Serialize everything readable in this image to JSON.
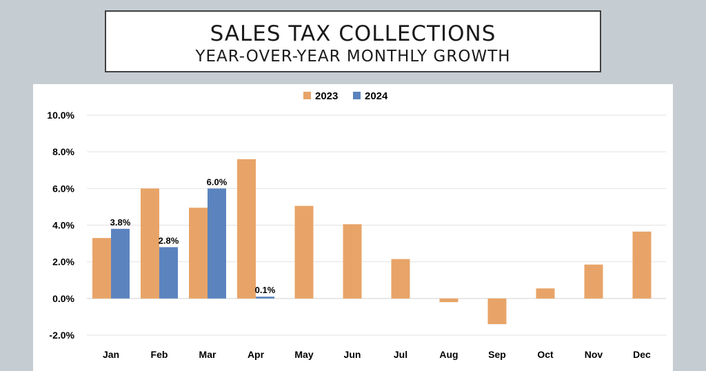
{
  "title": {
    "line1": "SALES TAX COLLECTIONS",
    "line2": "YEAR-OVER-YEAR MONTHLY GROWTH"
  },
  "chart_data": {
    "type": "bar",
    "categories": [
      "Jan",
      "Feb",
      "Mar",
      "Apr",
      "May",
      "Jun",
      "Jul",
      "Aug",
      "Sep",
      "Oct",
      "Nov",
      "Dec"
    ],
    "series": [
      {
        "name": "2023",
        "color": "#e8a468",
        "values": [
          3.3,
          6.0,
          4.95,
          7.6,
          5.05,
          4.05,
          2.15,
          -0.2,
          -1.4,
          0.55,
          1.85,
          3.65
        ]
      },
      {
        "name": "2024",
        "color": "#5b84bf",
        "values": [
          3.8,
          2.8,
          6.0,
          0.1,
          null,
          null,
          null,
          null,
          null,
          null,
          null,
          null
        ]
      }
    ],
    "data_labels": {
      "series": "2024",
      "values": [
        "3.8%",
        "2.8%",
        "6.0%",
        "0.1%"
      ]
    },
    "yaxis": {
      "ylim": [
        -2.0,
        10.0
      ],
      "ticks": [
        -2.0,
        0.0,
        2.0,
        4.0,
        6.0,
        8.0,
        10.0
      ],
      "tick_labels": [
        "-2.0%",
        "0.0%",
        "2.0%",
        "4.0%",
        "6.0%",
        "8.0%",
        "10.0%"
      ]
    },
    "xlabel": "",
    "ylabel": "",
    "grid": true,
    "legend": "top-center"
  }
}
